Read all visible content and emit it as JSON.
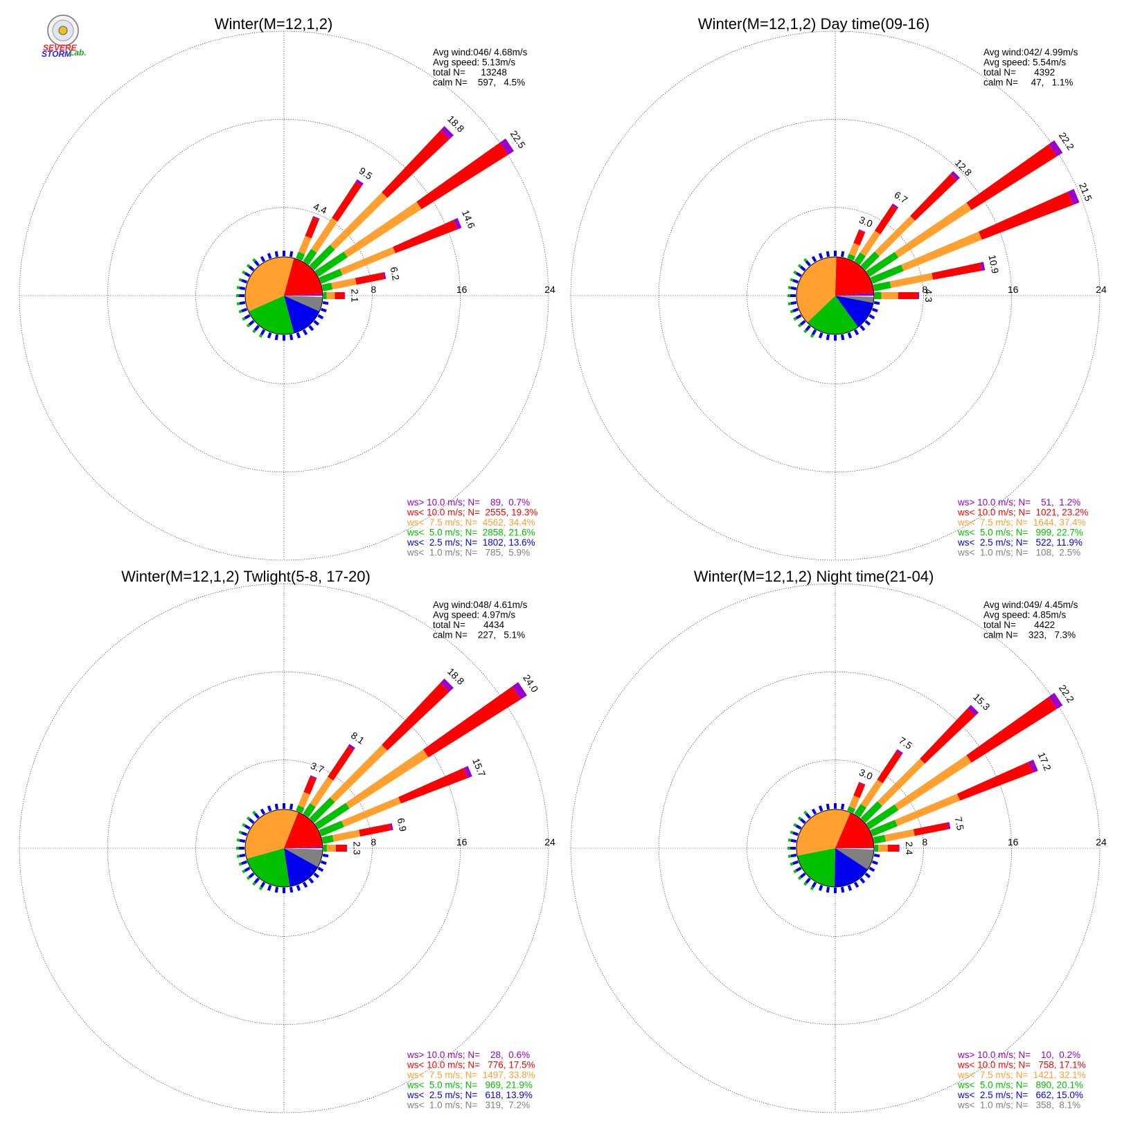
{
  "logo": {
    "name": "Severe Storm Lab. logo",
    "text_severe": "SEVERE",
    "text_storm": "STORM",
    "text_lab": "Lab."
  },
  "colors": {
    "calm": "#ffffff",
    "ws_lt_1": "#808080",
    "ws_lt_2_5": "#0000ee",
    "ws_lt_5": "#00c000",
    "ws_lt_7_5": "#ffa030",
    "ws_lt_10": "#ff0000",
    "ws_gt_10": "#9a00cc"
  },
  "chart_data": [
    {
      "type": "windrose",
      "title": "Winter(M=12,1,2)",
      "info": [
        "Avg wind:046/ 4.68m/s",
        "Avg speed: 5.13m/s",
        "total N=      13248",
        "calm N=    597,   4.5%"
      ],
      "rings": [
        "8",
        "16",
        "24"
      ],
      "rmax": 24,
      "petals": [
        {
          "dir": 22.5,
          "total": 4.4,
          "label": "4.4"
        },
        {
          "dir": 33.75,
          "total": 9.5,
          "label": "9.5"
        },
        {
          "dir": 45,
          "total": 18.8,
          "label": "18.8"
        },
        {
          "dir": 56.25,
          "total": 22.5,
          "label": "22.5"
        },
        {
          "dir": 67.5,
          "total": 14.6,
          "label": "14.6"
        },
        {
          "dir": 78.75,
          "total": 6.2,
          "label": "6.2"
        },
        {
          "dir": 90,
          "total": 2.1,
          "label": "2.1"
        }
      ],
      "pie": [
        0.5,
        5.9,
        13.6,
        21.6,
        34.4,
        19.3,
        0.7
      ],
      "legend": [
        "ws> 10.0 m/s; N=    89,  0.7%",
        "ws< 10.0 m/s; N=  2555, 19.3%",
        "ws<  7.5 m/s; N=  4562, 34.4%",
        "ws<  5.0 m/s; N=  2858, 21.6%",
        "ws<  2.5 m/s; N=  1802, 13.6%",
        "ws<  1.0 m/s; N=   785,  5.9%"
      ]
    },
    {
      "type": "windrose",
      "title": "Winter(M=12,1,2) Day time(09-16)",
      "info": [
        "Avg wind:042/ 4.99m/s",
        "Avg speed: 5.54m/s",
        "total N=       4392",
        "calm N=     47,   1.1%"
      ],
      "rings": [
        "8",
        "16",
        "24"
      ],
      "rmax": 24,
      "petals": [
        {
          "dir": 22.5,
          "total": 3.0,
          "label": "3.0"
        },
        {
          "dir": 33.75,
          "total": 6.7,
          "label": "6.7"
        },
        {
          "dir": 45,
          "total": 12.8,
          "label": "12.8"
        },
        {
          "dir": 56.25,
          "total": 22.2,
          "label": "22.2"
        },
        {
          "dir": 67.5,
          "total": 21.5,
          "label": "21.5"
        },
        {
          "dir": 78.75,
          "total": 10.9,
          "label": "10.9"
        },
        {
          "dir": 90,
          "total": 4.3,
          "label": "4.3"
        }
      ],
      "pie": [
        0.5,
        2.5,
        11.9,
        22.7,
        37.4,
        23.2,
        1.2
      ],
      "legend": [
        "ws> 10.0 m/s; N=    51,  1.2%",
        "ws< 10.0 m/s; N=  1021, 23.2%",
        "ws<  7.5 m/s; N=  1644, 37.4%",
        "ws<  5.0 m/s; N=   999, 22.7%",
        "ws<  2.5 m/s; N=   522, 11.9%",
        "ws<  1.0 m/s; N=   108,  2.5%"
      ]
    },
    {
      "type": "windrose",
      "title": "Winter(M=12,1,2) Twlight(5-8, 17-20)",
      "info": [
        "Avg wind:048/ 4.61m/s",
        "Avg speed: 4.97m/s",
        "total N=       4434",
        "calm N=    227,   5.1%"
      ],
      "rings": [
        "8",
        "16",
        "24"
      ],
      "rmax": 24,
      "petals": [
        {
          "dir": 22.5,
          "total": 3.7,
          "label": "3.7"
        },
        {
          "dir": 33.75,
          "total": 8.1,
          "label": "8.1"
        },
        {
          "dir": 45,
          "total": 18.8,
          "label": "18.8"
        },
        {
          "dir": 56.25,
          "total": 24.0,
          "label": "24.0"
        },
        {
          "dir": 67.5,
          "total": 15.7,
          "label": "15.7"
        },
        {
          "dir": 78.75,
          "total": 6.9,
          "label": "6.9"
        },
        {
          "dir": 90,
          "total": 2.3,
          "label": "2.3"
        }
      ],
      "pie": [
        0.5,
        7.2,
        13.9,
        21.9,
        33.8,
        17.5,
        0.6
      ],
      "legend": [
        "ws> 10.0 m/s; N=    28,  0.6%",
        "ws< 10.0 m/s; N=   776, 17.5%",
        "ws<  7.5 m/s; N=  1497, 33.8%",
        "ws<  5.0 m/s; N=   969, 21.9%",
        "ws<  2.5 m/s; N=   618, 13.9%",
        "ws<  1.0 m/s; N=   319,  7.2%"
      ]
    },
    {
      "type": "windrose",
      "title": "Winter(M=12,1,2) Night time(21-04)",
      "info": [
        "Avg wind:049/ 4.45m/s",
        "Avg speed: 4.85m/s",
        "total N=       4422",
        "calm N=    323,   7.3%"
      ],
      "rings": [
        "8",
        "16",
        "24"
      ],
      "rmax": 24,
      "petals": [
        {
          "dir": 22.5,
          "total": 3.0,
          "label": "3.0"
        },
        {
          "dir": 33.75,
          "total": 7.5,
          "label": "7.5"
        },
        {
          "dir": 45,
          "total": 15.3,
          "label": "15.3"
        },
        {
          "dir": 56.25,
          "total": 22.2,
          "label": "22.2"
        },
        {
          "dir": 67.5,
          "total": 17.2,
          "label": "17.2"
        },
        {
          "dir": 78.75,
          "total": 7.5,
          "label": "7.5"
        },
        {
          "dir": 90,
          "total": 2.4,
          "label": "2.4"
        }
      ],
      "pie": [
        0.5,
        8.1,
        15.0,
        20.1,
        32.1,
        17.1,
        0.2
      ],
      "legend": [
        "ws> 10.0 m/s; N=    10,  0.2%",
        "ws< 10.0 m/s; N=   758, 17.1%",
        "ws<  7.5 m/s; N=  1421, 32.1%",
        "ws<  5.0 m/s; N=   890, 20.1%",
        "ws<  2.5 m/s; N=   662, 15.0%",
        "ws<  1.0 m/s; N=   358,  8.1%"
      ]
    }
  ]
}
